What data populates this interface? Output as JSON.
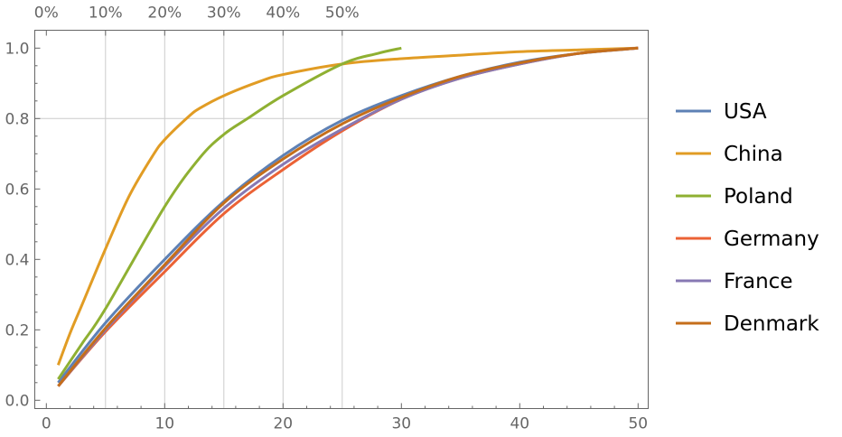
{
  "chart_data": {
    "type": "line",
    "title": "",
    "xlabel": "",
    "ylabel": "",
    "xlim": [
      -1,
      51
    ],
    "ylim": [
      -0.02,
      1.05
    ],
    "x_ticks": [
      0,
      10,
      20,
      30,
      40,
      50
    ],
    "x_tick_labels": [
      "0",
      "10",
      "20",
      "30",
      "40",
      "50"
    ],
    "y_ticks": [
      0,
      0.2,
      0.4,
      0.6,
      0.8,
      1.0
    ],
    "y_tick_labels": [
      "0.0",
      "0.2",
      "0.4",
      "0.6",
      "0.8",
      "1.0"
    ],
    "top_axis": {
      "ticks": [
        0,
        5,
        10,
        15,
        20,
        25
      ],
      "tick_labels": [
        "0%",
        "10%",
        "20%",
        "30%",
        "40%",
        "50%"
      ]
    },
    "grid": {
      "x": [
        5,
        10,
        15,
        20,
        25
      ],
      "y": [
        0.8
      ]
    },
    "legend_position": "right",
    "series": [
      {
        "name": "USA",
        "color": "#5e81b5",
        "x": [
          1,
          5,
          10,
          15,
          20,
          25,
          30,
          35,
          40,
          45,
          50
        ],
        "y": [
          0.05,
          0.22,
          0.4,
          0.565,
          0.695,
          0.795,
          0.865,
          0.92,
          0.96,
          0.985,
          1.0
        ]
      },
      {
        "name": "China",
        "color": "#e19c24",
        "x": [
          1,
          2,
          3,
          5,
          7,
          9,
          10,
          12,
          13,
          15,
          18,
          20,
          25,
          30,
          35,
          40,
          45,
          50
        ],
        "y": [
          0.1,
          0.19,
          0.27,
          0.43,
          0.58,
          0.695,
          0.74,
          0.805,
          0.83,
          0.865,
          0.905,
          0.925,
          0.955,
          0.97,
          0.98,
          0.99,
          0.995,
          1.0
        ]
      },
      {
        "name": "Poland",
        "color": "#8fb032",
        "x": [
          1,
          3,
          5,
          10,
          13,
          15,
          17,
          20,
          25,
          28,
          30
        ],
        "y": [
          0.06,
          0.16,
          0.26,
          0.55,
          0.69,
          0.755,
          0.8,
          0.865,
          0.955,
          0.985,
          1.0
        ]
      },
      {
        "name": "Germany",
        "color": "#eb6235",
        "x": [
          1,
          5,
          10,
          15,
          20,
          25,
          30,
          35,
          40,
          45,
          50
        ],
        "y": [
          0.04,
          0.195,
          0.365,
          0.53,
          0.655,
          0.765,
          0.855,
          0.915,
          0.955,
          0.985,
          1.0
        ]
      },
      {
        "name": "France",
        "color": "#8778b3",
        "x": [
          1,
          5,
          10,
          15,
          20,
          25,
          30,
          35,
          40,
          45,
          50
        ],
        "y": [
          0.04,
          0.2,
          0.38,
          0.545,
          0.67,
          0.77,
          0.855,
          0.915,
          0.955,
          0.985,
          1.0
        ]
      },
      {
        "name": "Denmark",
        "color": "#c56e1a",
        "x": [
          1,
          5,
          10,
          15,
          20,
          25,
          30,
          35,
          40,
          45,
          50
        ],
        "y": [
          0.04,
          0.205,
          0.385,
          0.56,
          0.685,
          0.785,
          0.86,
          0.92,
          0.958,
          0.985,
          1.0
        ]
      }
    ]
  }
}
